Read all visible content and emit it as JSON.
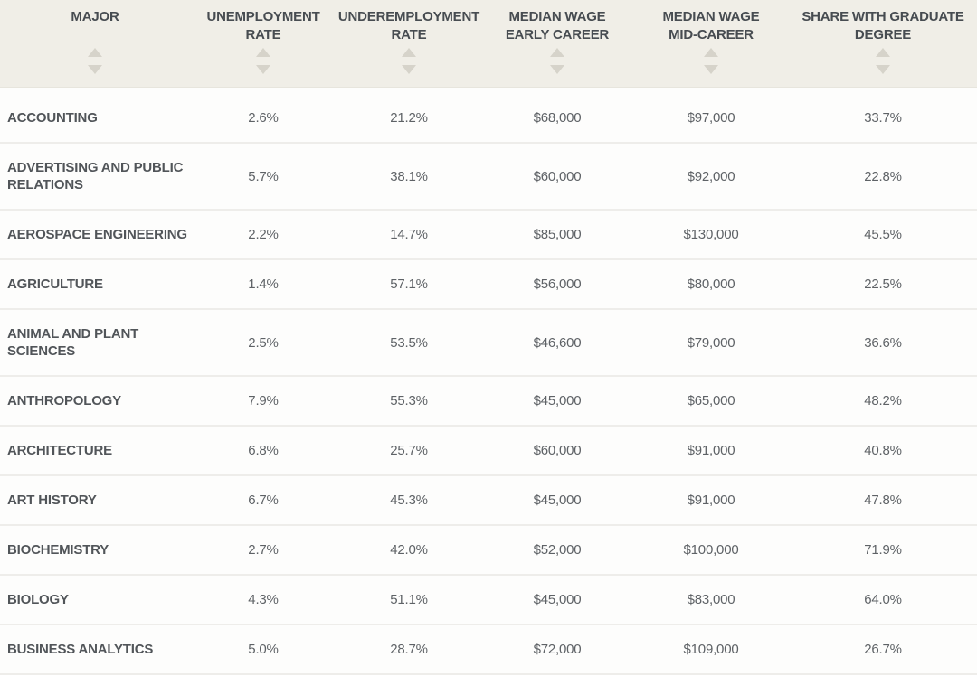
{
  "chart_data": {
    "type": "table",
    "title": "College majors outcomes table",
    "sortable_columns": true,
    "columns": [
      {
        "id": "major",
        "label": "MAJOR"
      },
      {
        "id": "unemployment_rate",
        "label": "UNEMPLOYMENT\nRATE"
      },
      {
        "id": "underemployment_rate",
        "label": "UNDEREMPLOYMENT\nRATE"
      },
      {
        "id": "median_wage_early_career",
        "label": "MEDIAN WAGE\nEARLY CAREER"
      },
      {
        "id": "median_wage_mid_career",
        "label": "MEDIAN WAGE\nMID-CAREER"
      },
      {
        "id": "share_with_graduate_degree",
        "label": "SHARE WITH GRADUATE\nDEGREE"
      }
    ],
    "rows": [
      {
        "major": "ACCOUNTING",
        "unemployment_rate": "2.6%",
        "underemployment_rate": "21.2%",
        "median_wage_early_career": "$68,000",
        "median_wage_mid_career": "$97,000",
        "share_with_graduate_degree": "33.7%"
      },
      {
        "major": "ADVERTISING AND PUBLIC\nRELATIONS",
        "unemployment_rate": "5.7%",
        "underemployment_rate": "38.1%",
        "median_wage_early_career": "$60,000",
        "median_wage_mid_career": "$92,000",
        "share_with_graduate_degree": "22.8%"
      },
      {
        "major": "AEROSPACE ENGINEERING",
        "unemployment_rate": "2.2%",
        "underemployment_rate": "14.7%",
        "median_wage_early_career": "$85,000",
        "median_wage_mid_career": "$130,000",
        "share_with_graduate_degree": "45.5%"
      },
      {
        "major": "AGRICULTURE",
        "unemployment_rate": "1.4%",
        "underemployment_rate": "57.1%",
        "median_wage_early_career": "$56,000",
        "median_wage_mid_career": "$80,000",
        "share_with_graduate_degree": "22.5%"
      },
      {
        "major": "ANIMAL AND PLANT\nSCIENCES",
        "unemployment_rate": "2.5%",
        "underemployment_rate": "53.5%",
        "median_wage_early_career": "$46,600",
        "median_wage_mid_career": "$79,000",
        "share_with_graduate_degree": "36.6%"
      },
      {
        "major": "ANTHROPOLOGY",
        "unemployment_rate": "7.9%",
        "underemployment_rate": "55.3%",
        "median_wage_early_career": "$45,000",
        "median_wage_mid_career": "$65,000",
        "share_with_graduate_degree": "48.2%"
      },
      {
        "major": "ARCHITECTURE",
        "unemployment_rate": "6.8%",
        "underemployment_rate": "25.7%",
        "median_wage_early_career": "$60,000",
        "median_wage_mid_career": "$91,000",
        "share_with_graduate_degree": "40.8%"
      },
      {
        "major": "ART HISTORY",
        "unemployment_rate": "6.7%",
        "underemployment_rate": "45.3%",
        "median_wage_early_career": "$45,000",
        "median_wage_mid_career": "$91,000",
        "share_with_graduate_degree": "47.8%"
      },
      {
        "major": "BIOCHEMISTRY",
        "unemployment_rate": "2.7%",
        "underemployment_rate": "42.0%",
        "median_wage_early_career": "$52,000",
        "median_wage_mid_career": "$100,000",
        "share_with_graduate_degree": "71.9%"
      },
      {
        "major": "BIOLOGY",
        "unemployment_rate": "4.3%",
        "underemployment_rate": "51.1%",
        "median_wage_early_career": "$45,000",
        "median_wage_mid_career": "$83,000",
        "share_with_graduate_degree": "64.0%"
      },
      {
        "major": "BUSINESS ANALYTICS",
        "unemployment_rate": "5.0%",
        "underemployment_rate": "28.7%",
        "median_wage_early_career": "$72,000",
        "median_wage_mid_career": "$109,000",
        "share_with_graduate_degree": "26.7%"
      }
    ]
  },
  "icons": {
    "sort_ascending": "sort-asc-icon",
    "sort_descending": "sort-desc-icon"
  },
  "colors": {
    "header_background": "#f0eee7",
    "header_text": "#474c51",
    "sort_arrow": "#d6d3ca",
    "row_background": "#fdfdfc",
    "row_separator": "#eeedea",
    "major_label_text": "#515559",
    "value_text": "#5e6266"
  }
}
